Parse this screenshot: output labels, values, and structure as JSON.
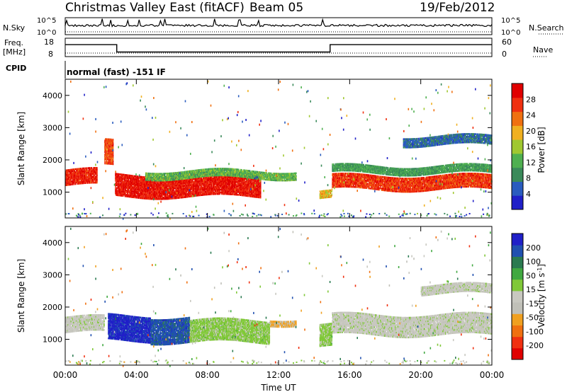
{
  "header": {
    "title": "Christmas Valley East (fitACF)",
    "beam": "Beam 05",
    "date": "19/Feb/2012",
    "cpid_label": "CPID",
    "cpid_text": "normal (fast) -151 IF"
  },
  "strips": {
    "nsky": {
      "left_label": "N.Sky",
      "right_label": "N.Search",
      "ytick_top": "10^5",
      "ytick_bottom": "10^0"
    },
    "freq": {
      "left_label_1": "Freq.",
      "left_label_2": "[MHz]",
      "right_label": "Nave",
      "left_top": "18",
      "left_bottom": "8",
      "right_top": "60",
      "right_bottom": "0",
      "freq_high_mhz": 14.5,
      "freq_low_mhz": 10.5,
      "freq_switch_times_h": [
        2.9,
        14.9
      ]
    }
  },
  "axes": {
    "ylabel": "Slant Range [km]",
    "xlabel": "Time UT",
    "xticks": [
      "00:00",
      "04:00",
      "08:00",
      "12:00",
      "16:00",
      "20:00",
      "00:00"
    ],
    "yticks": [
      "1000",
      "2000",
      "3000",
      "4000"
    ]
  },
  "colors": {
    "power": [
      "#2020c8",
      "#2a5cbf",
      "#3a8a5a",
      "#4fb050",
      "#a0c830",
      "#f0b020",
      "#f07010",
      "#f03010",
      "#e00000"
    ],
    "velocity": [
      "#2020c8",
      "#2050b0",
      "#2a7a50",
      "#40a840",
      "#80c838",
      "#c8c8c0",
      "#c0c0b8",
      "#f0a020",
      "#f07010",
      "#f03010",
      "#e00000"
    ]
  },
  "chart_data": [
    {
      "type": "heatmap",
      "panel": "power",
      "xlabel": "Time UT",
      "ylabel": "Slant Range [km]",
      "xlim_hours": [
        0,
        24
      ],
      "ylim_km": [
        200,
        4500
      ],
      "colorbar": {
        "label": "Power [dB]",
        "ticks": [
          "4",
          "8",
          "12",
          "16",
          "20",
          "24",
          "28"
        ],
        "range": [
          0,
          30
        ]
      },
      "bands": [
        {
          "t0": 0.0,
          "t1": 1.8,
          "r_center_km": 1450,
          "r_width_km": 500,
          "value_db": 26
        },
        {
          "t0": 2.2,
          "t1": 2.7,
          "r_center_km": 2200,
          "r_width_km": 800,
          "value_db": 24
        },
        {
          "t0": 2.8,
          "t1": 11.0,
          "r_center_km": 1200,
          "r_width_km": 700,
          "value_db": 27
        },
        {
          "t0": 4.5,
          "t1": 13.0,
          "r_center_km": 1550,
          "r_width_km": 250,
          "value_db": 12
        },
        {
          "t0": 14.3,
          "t1": 15.0,
          "r_center_km": 900,
          "r_width_km": 250,
          "value_db": 18
        },
        {
          "t0": 15.0,
          "t1": 24.0,
          "r_center_km": 1300,
          "r_width_km": 450,
          "value_db": 25
        },
        {
          "t0": 15.0,
          "t1": 24.0,
          "r_center_km": 1700,
          "r_width_km": 250,
          "value_db": 10
        },
        {
          "t0": 19.0,
          "t1": 24.0,
          "r_center_km": 2600,
          "r_width_km": 300,
          "value_db": 6
        }
      ]
    },
    {
      "type": "heatmap",
      "panel": "velocity",
      "xlabel": "Time UT",
      "ylabel": "Slant Range [km]",
      "xlim_hours": [
        0,
        24
      ],
      "ylim_km": [
        200,
        4500
      ],
      "colorbar": {
        "label": "Velocity [m s^-1]",
        "ticks": [
          "200",
          "100",
          "50",
          "15",
          "-15",
          "-50",
          "-100",
          "-200"
        ],
        "range": [
          -250,
          250
        ]
      },
      "bands": [
        {
          "t0": 0.0,
          "t1": 2.2,
          "r_center_km": 1450,
          "r_width_km": 500,
          "value_ms": 0
        },
        {
          "t0": 2.4,
          "t1": 4.8,
          "r_center_km": 1350,
          "r_width_km": 800,
          "value_ms": 220
        },
        {
          "t0": 4.8,
          "t1": 7.0,
          "r_center_km": 1300,
          "r_width_km": 800,
          "value_ms": 180
        },
        {
          "t0": 7.0,
          "t1": 11.5,
          "r_center_km": 1250,
          "r_width_km": 700,
          "value_ms": 40
        },
        {
          "t0": 11.5,
          "t1": 13.0,
          "r_center_km": 1550,
          "r_width_km": 200,
          "value_ms": -80
        },
        {
          "t0": 14.3,
          "t1": 15.0,
          "r_center_km": 1100,
          "r_width_km": 700,
          "value_ms": 40
        },
        {
          "t0": 15.0,
          "t1": 24.0,
          "r_center_km": 1450,
          "r_width_km": 650,
          "value_ms": 0
        },
        {
          "t0": 20.0,
          "t1": 24.0,
          "r_center_km": 2550,
          "r_width_km": 300,
          "value_ms": 0
        }
      ]
    }
  ]
}
